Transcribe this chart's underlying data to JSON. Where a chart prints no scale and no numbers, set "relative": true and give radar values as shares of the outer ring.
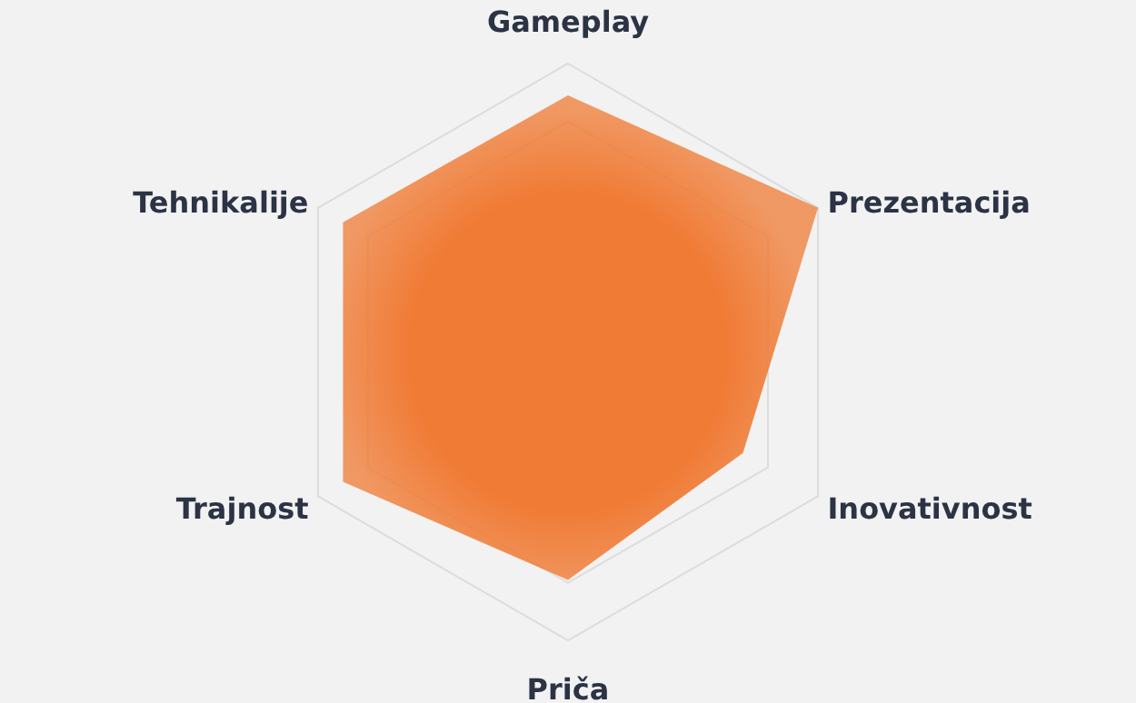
{
  "chart_data": {
    "type": "radar",
    "relative": true,
    "categories": [
      "Gameplay",
      "Prezentacija",
      "Inovativnost",
      "Priča",
      "Trajnost",
      "Tehnikalije"
    ],
    "series": [
      {
        "color": "#f07b35",
        "values": [
          0.89,
          1.0,
          0.7,
          0.79,
          0.9,
          0.9
        ]
      }
    ]
  }
}
